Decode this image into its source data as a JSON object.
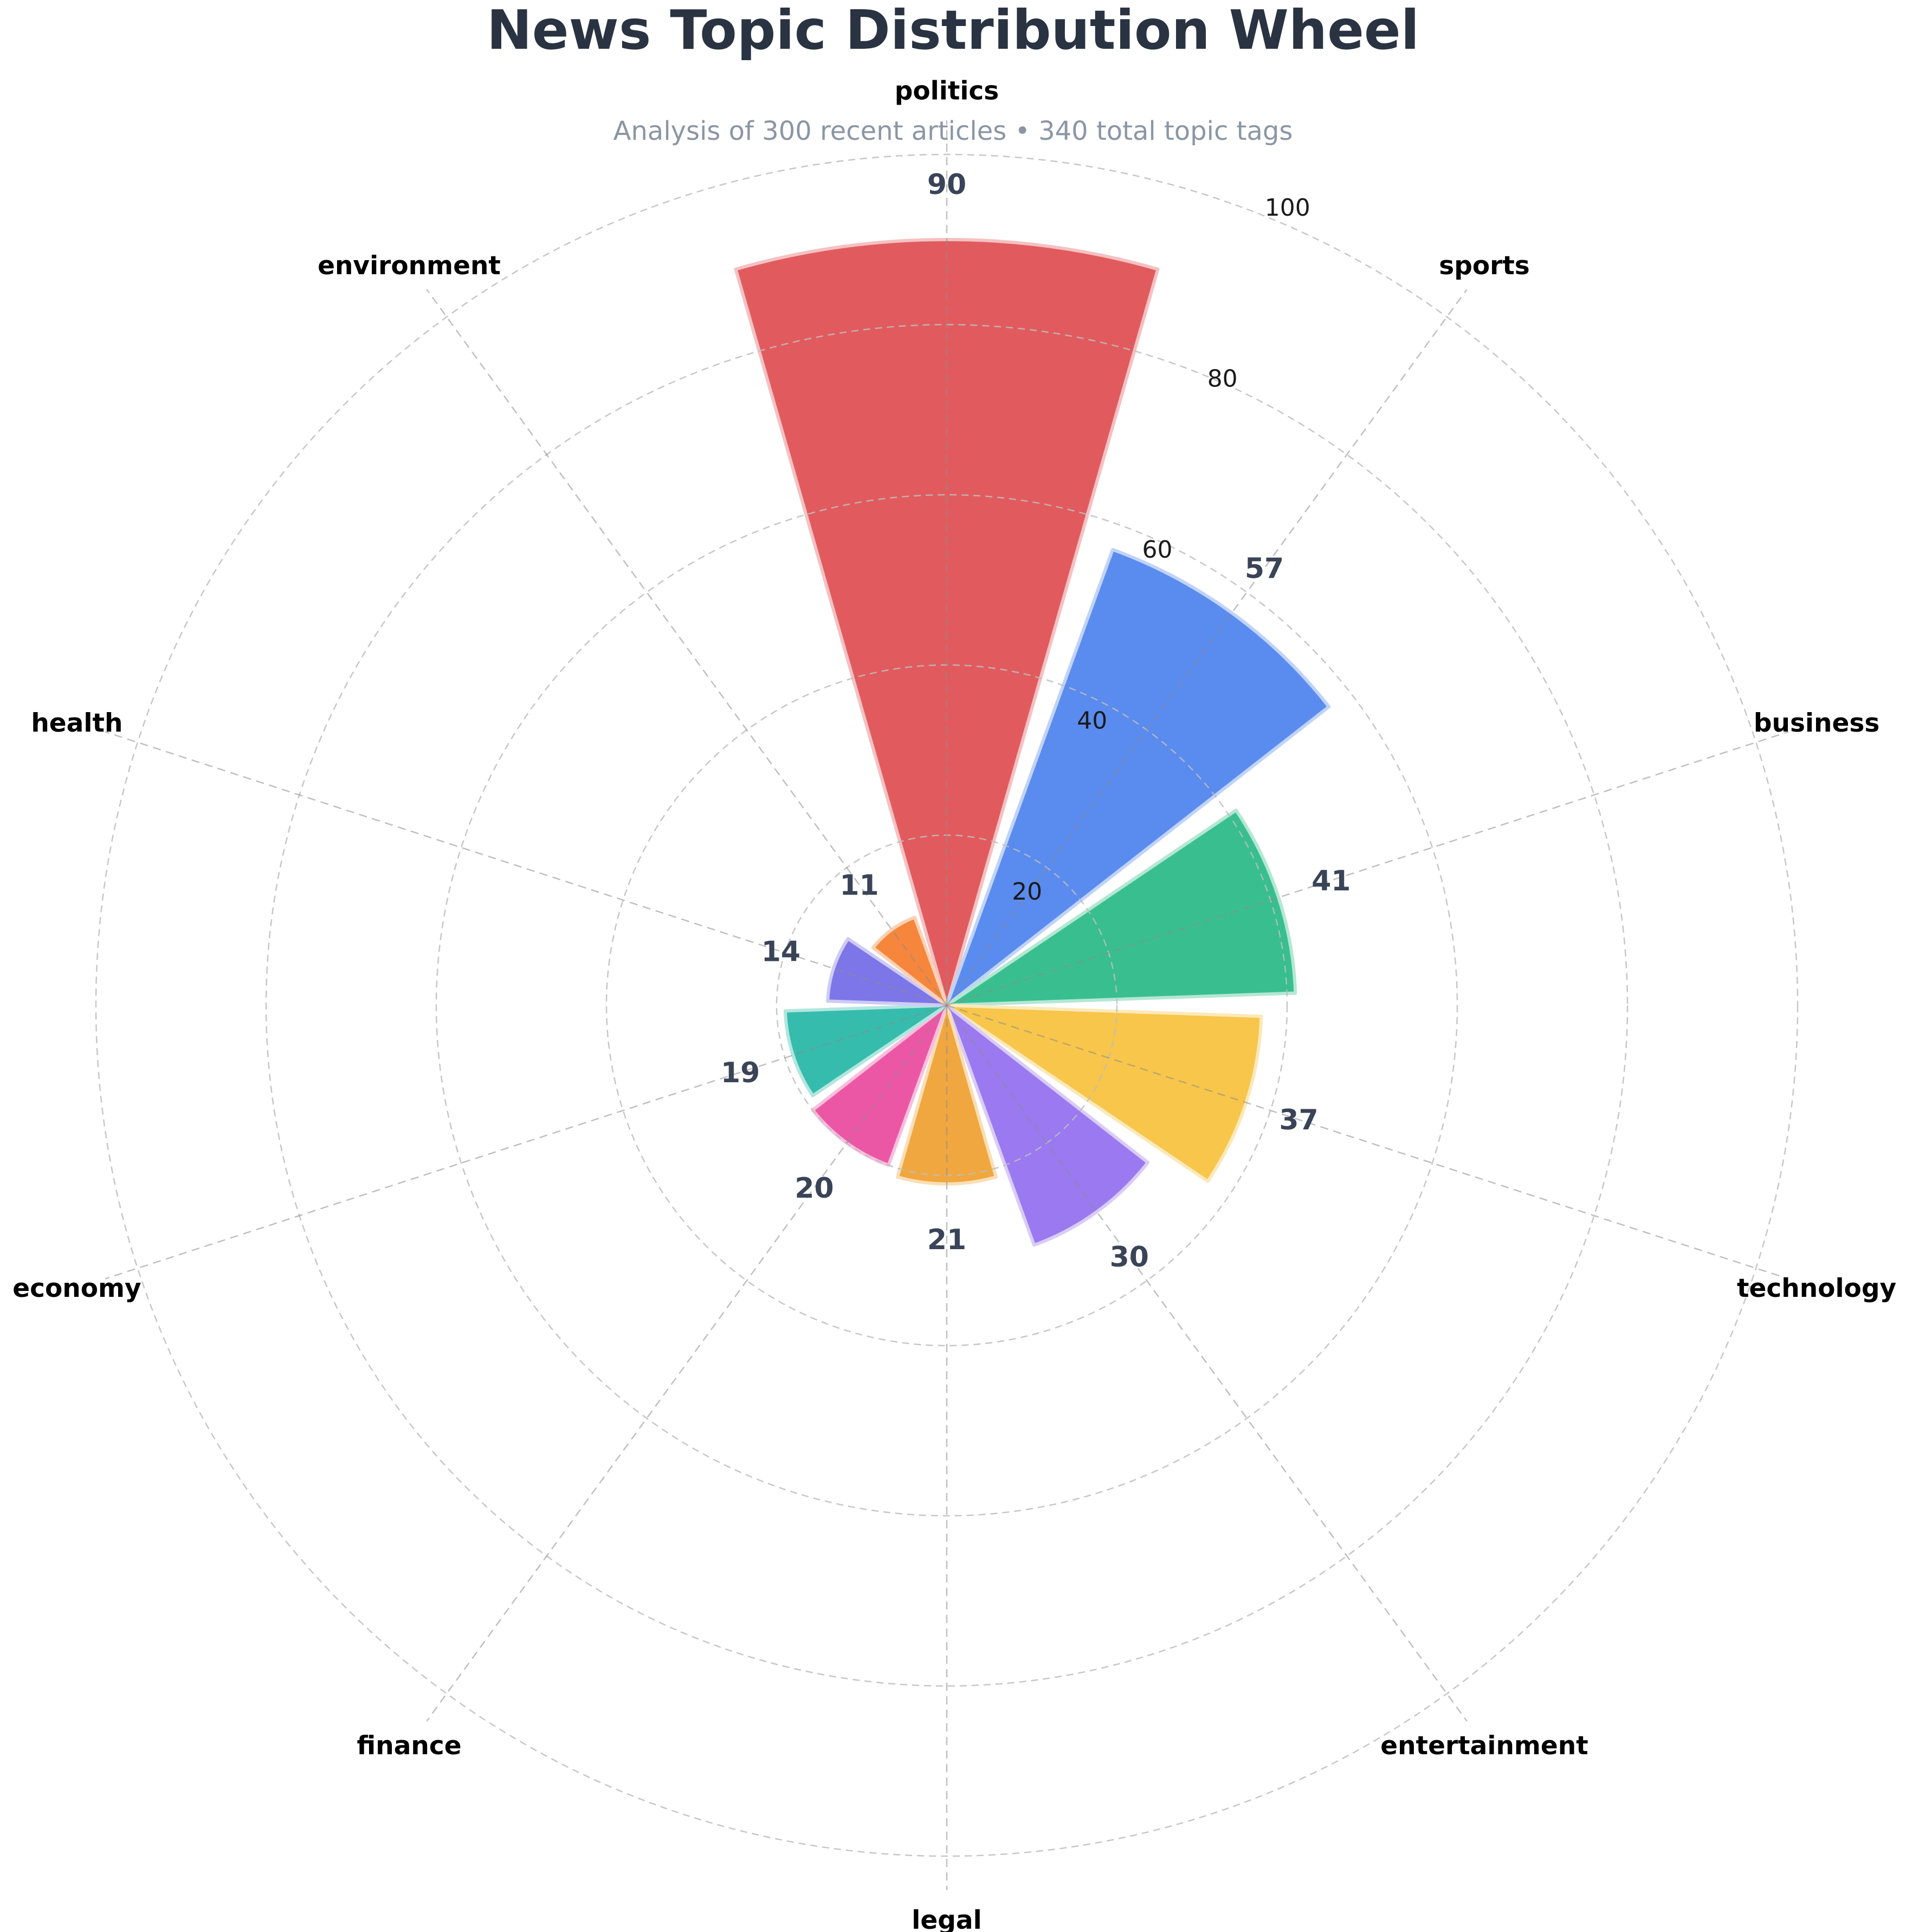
{
  "chart_data": {
    "type": "bar",
    "projection": "polar",
    "title": "News Topic Distribution Wheel",
    "subtitle": "Analysis of 300 recent articles • 340 total topic tags",
    "categories": [
      "politics",
      "sports",
      "business",
      "technology",
      "entertainment",
      "legal",
      "finance",
      "economy",
      "health",
      "environment"
    ],
    "values": [
      90,
      57,
      41,
      37,
      30,
      21,
      20,
      19,
      14,
      11
    ],
    "colors": [
      "#e15b5e",
      "#5a8bef",
      "#39bf8f",
      "#f7c64a",
      "#9b79f0",
      "#f0a73f",
      "#ec57a5",
      "#35bcac",
      "#7d76e8",
      "#f6863c"
    ],
    "radial_ticks": [
      20,
      40,
      60,
      80,
      100
    ],
    "rlim": [
      0,
      100
    ],
    "angle_start_deg": 0,
    "direction": "clockwise",
    "bar_width_deg": 32,
    "rlabel_angle_deg": 22.5,
    "grid": true,
    "legend": "none",
    "title_color": "#2a3342",
    "subtitle_color": "#8b96a5",
    "value_label_color": "#3a4458",
    "category_label_color": "#000000",
    "tick_label_color": "#1a1a1a",
    "grid_circle_color": "#bdbdbd",
    "grid_spoke_color": "#8c8c8c",
    "background_color": "#ffffff"
  }
}
